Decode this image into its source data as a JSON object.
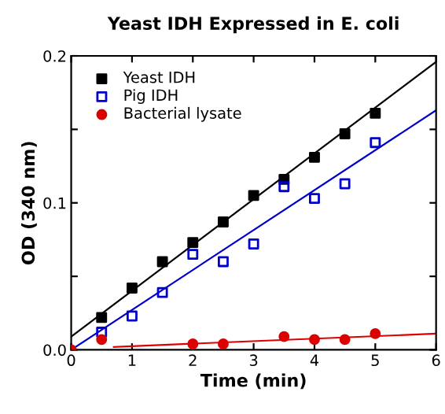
{
  "chart_data": {
    "type": "scatter",
    "title": "Yeast IDH Expressed in E. coli",
    "xlabel": "Time (min)",
    "ylabel": "OD (340 nm)",
    "xlim": [
      0,
      6
    ],
    "ylim": [
      0,
      0.2
    ],
    "xticks": [
      0,
      1,
      2,
      3,
      4,
      5,
      6
    ],
    "yticks": [
      {
        "value": 0,
        "label": "0.0"
      },
      {
        "value": 0.05,
        "label": null
      },
      0.1,
      {
        "value": 0.15,
        "label": null
      },
      0.2
    ],
    "grid": false,
    "legend": "top left",
    "series": [
      {
        "name": "Yeast IDH",
        "color": "#000000",
        "marker": "square",
        "x": [
          0.5,
          1,
          1.5,
          2,
          2.5,
          3,
          3.5,
          4,
          4.5,
          5
        ],
        "values": [
          0.022,
          0.042,
          0.06,
          0.073,
          0.087,
          0.105,
          0.116,
          0.131,
          0.147,
          0.161
        ]
      },
      {
        "name": "Pig IDH",
        "color": "#0000cc",
        "marker": "square",
        "x": [
          0.5,
          1,
          1.5,
          2,
          2.5,
          3,
          3.5,
          4,
          4.5,
          5
        ],
        "values": [
          0.012,
          0.023,
          0.039,
          0.065,
          0.06,
          0.072,
          0.111,
          0.103,
          0.113,
          0.141
        ]
      },
      {
        "name": "Bacterial lysate",
        "color": "#dd0000",
        "marker": "circle",
        "x": [
          0,
          0.5,
          2,
          2.5,
          3.5,
          4,
          4.5,
          5
        ],
        "values": [
          0.0,
          0.007,
          0.004,
          0.004,
          0.009,
          0.007,
          0.007,
          0.011
        ]
      },
      {
        "type": "line",
        "color": "#000000",
        "x": [
          0,
          6
        ],
        "values": [
          0.009,
          0.196
        ]
      },
      {
        "type": "line",
        "color": "#0000cc",
        "x": [
          0,
          6
        ],
        "values": [
          0.0,
          0.163
        ]
      },
      {
        "type": "line",
        "color": "#dd0000",
        "x": [
          0.7,
          6
        ],
        "values": [
          0.002,
          0.011
        ]
      }
    ]
  }
}
